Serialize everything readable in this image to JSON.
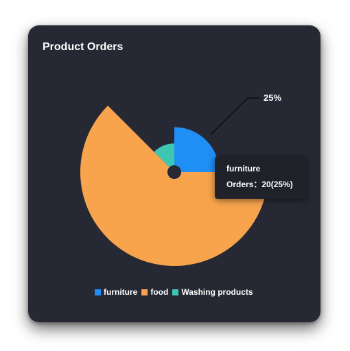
{
  "card": {
    "title": "Product Orders"
  },
  "colors": {
    "background": "#262833",
    "hole": "#262833",
    "leader": "#000000",
    "label": "#ffffff"
  },
  "chart_data": {
    "type": "pie",
    "variant": "nightingale-rose",
    "start_angle_deg": 90,
    "clockwise": true,
    "categories": [
      "furniture",
      "food",
      "Washing products"
    ],
    "values": [
      20,
      50,
      10
    ],
    "percents": [
      25,
      62.5,
      12.5
    ],
    "colors": [
      "#1f8ff5",
      "#f7a44d",
      "#3dc6b1"
    ],
    "slice_label": "25%",
    "legend_placement": "bottom-center"
  },
  "tooltip": {
    "name": "furniture",
    "series_label": "Orders：",
    "value_text": "20(25%)"
  },
  "legend": {
    "items": [
      {
        "label": "furniture",
        "color": "#1f8ff5"
      },
      {
        "label": "food",
        "color": "#f7a44d"
      },
      {
        "label": "Washing products",
        "color": "#3dc6b1"
      }
    ]
  }
}
